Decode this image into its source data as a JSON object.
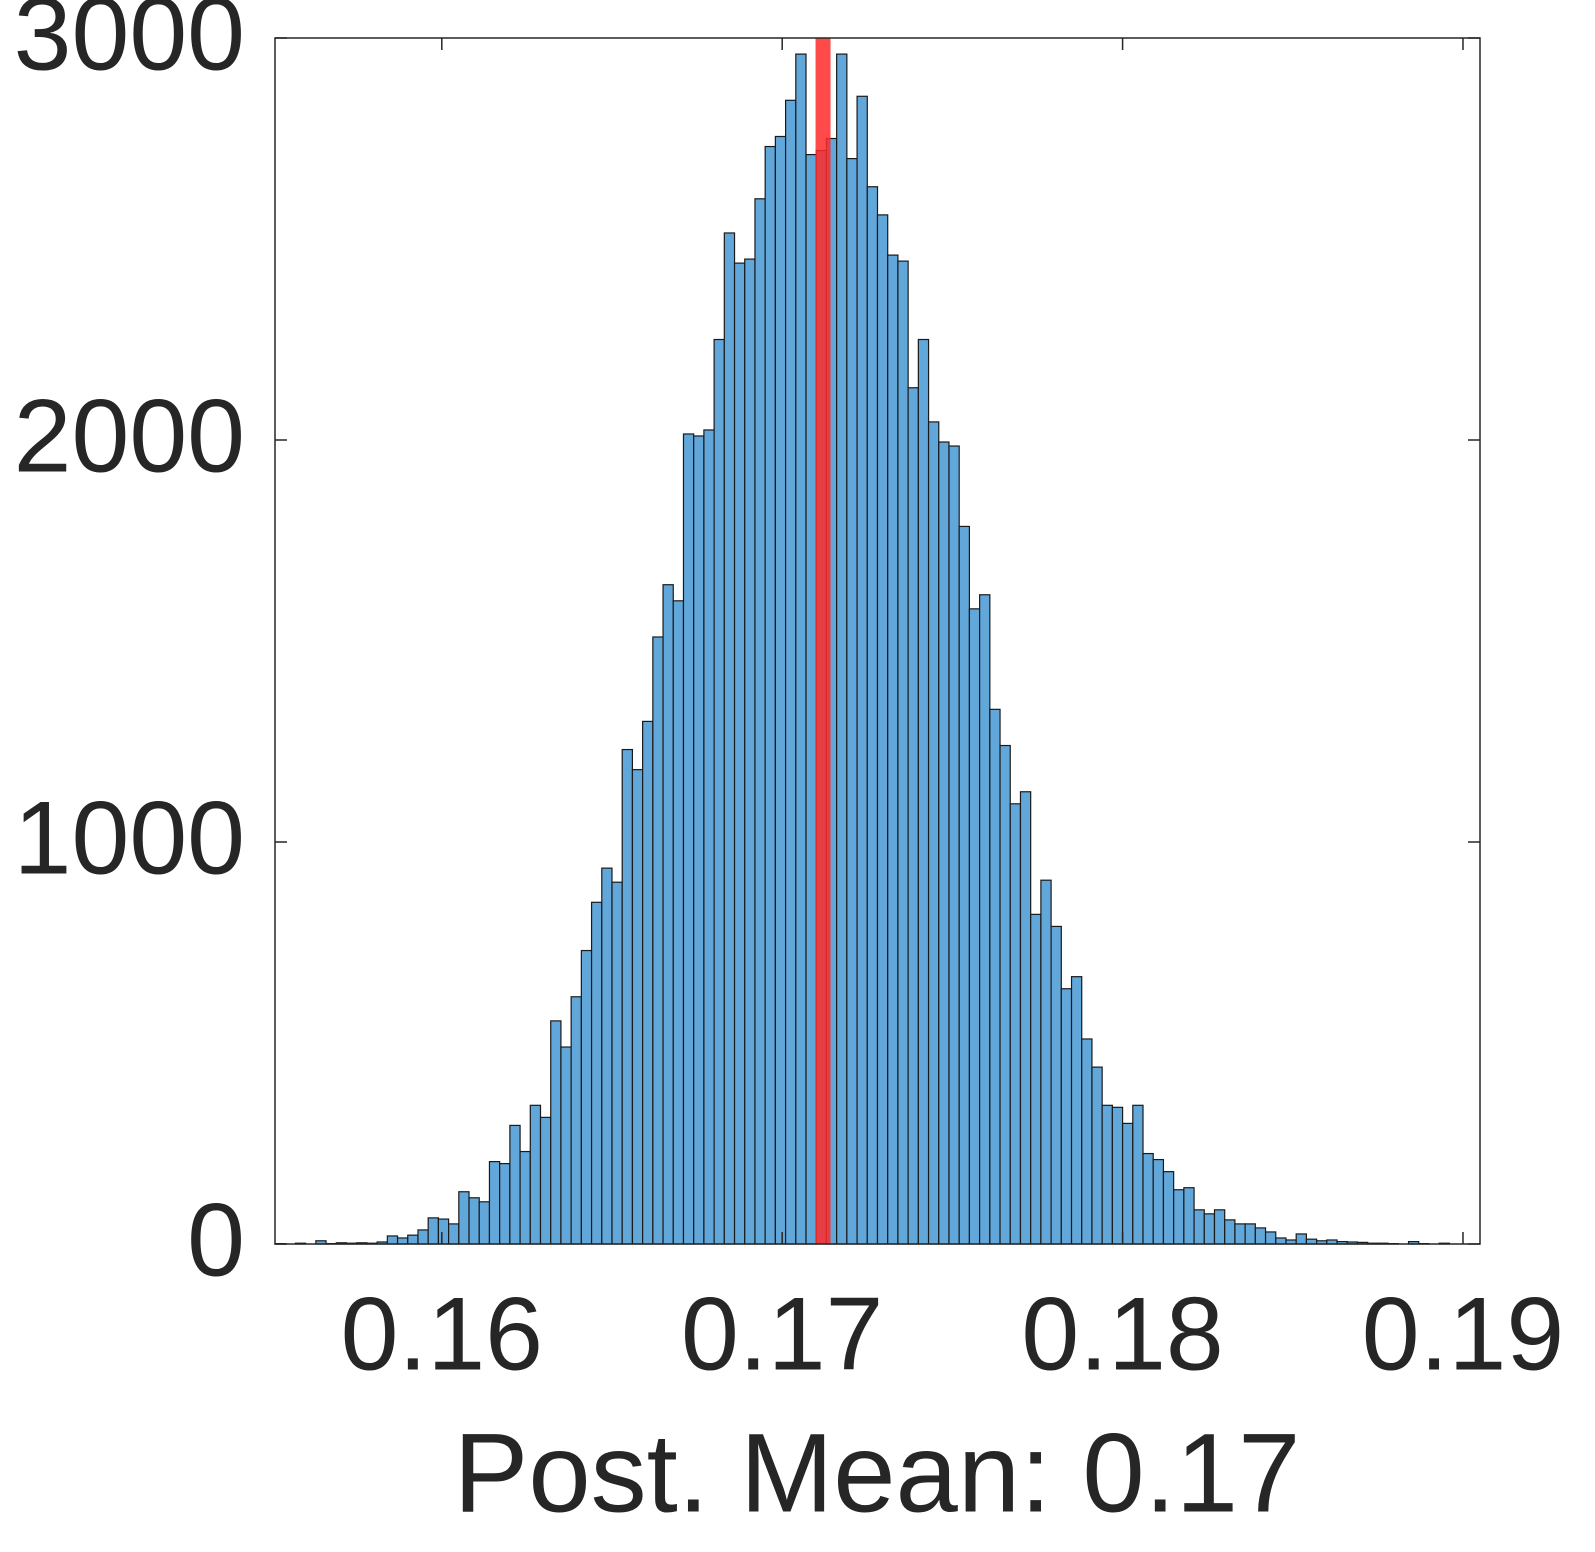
{
  "chart_data": {
    "type": "histogram",
    "xlabel": "Post. Mean: 0.17",
    "bins": [
      0.1551,
      0.1554,
      0.1557,
      0.156,
      0.1563,
      0.1566,
      0.1569,
      0.1572,
      0.1575,
      0.1578,
      0.1581,
      0.1584,
      0.1587,
      0.159,
      0.1593,
      0.1596,
      0.1599,
      0.1602,
      0.1605,
      0.1608,
      0.1611,
      0.1614,
      0.1617,
      0.162,
      0.1623,
      0.1626,
      0.1629,
      0.1632,
      0.1635,
      0.1638,
      0.1641,
      0.1644,
      0.1647,
      0.165,
      0.1653,
      0.1656,
      0.1659,
      0.1662,
      0.1665,
      0.1668,
      0.1671,
      0.1674,
      0.1677,
      0.168,
      0.1683,
      0.1686,
      0.1689,
      0.1692,
      0.1695,
      0.1698,
      0.1701,
      0.1704,
      0.1707,
      0.171,
      0.1713,
      0.1716,
      0.1719,
      0.1722,
      0.1725,
      0.1728,
      0.1731,
      0.1734,
      0.1737,
      0.174,
      0.1743,
      0.1746,
      0.1749,
      0.1752,
      0.1755,
      0.1758,
      0.1761,
      0.1764,
      0.1767,
      0.177,
      0.1773,
      0.1776,
      0.1779,
      0.1782,
      0.1785,
      0.1788,
      0.1791,
      0.1794,
      0.1797,
      0.18,
      0.1803,
      0.1806,
      0.1809,
      0.1812,
      0.1815,
      0.1818,
      0.1821,
      0.1824,
      0.1827,
      0.183,
      0.1833,
      0.1836,
      0.1839,
      0.1842,
      0.1845,
      0.1848,
      0.1851,
      0.1854,
      0.1857,
      0.186,
      0.1863,
      0.1866,
      0.1869,
      0.1872,
      0.1875,
      0.1878,
      0.1881,
      0.1884,
      0.1887,
      0.189,
      0.1893,
      0.1896
    ],
    "values": [
      1,
      0,
      2,
      0,
      8,
      1,
      3,
      2,
      3,
      2,
      5,
      20,
      15,
      22,
      35,
      65,
      62,
      50,
      130,
      115,
      105,
      205,
      200,
      295,
      230,
      345,
      315,
      555,
      490,
      615,
      730,
      850,
      935,
      900,
      1230,
      1180,
      1300,
      1510,
      1640,
      1600,
      2015,
      2010,
      2025,
      2250,
      2515,
      2440,
      2450,
      2600,
      2730,
      2755,
      2845,
      2960,
      2710,
      2720,
      2750,
      2960,
      2700,
      2855,
      2630,
      2560,
      2460,
      2445,
      2130,
      2250,
      2045,
      1995,
      1985,
      1785,
      1580,
      1615,
      1330,
      1240,
      1095,
      1125,
      820,
      905,
      790,
      635,
      665,
      510,
      440,
      345,
      340,
      300,
      345,
      225,
      210,
      180,
      135,
      140,
      85,
      75,
      85,
      60,
      50,
      50,
      40,
      30,
      15,
      10,
      25,
      12,
      8,
      10,
      6,
      5,
      4,
      2,
      2,
      1,
      0,
      6,
      1,
      0,
      2
    ],
    "color": "#62a7d9",
    "edgecolor": "#1a1a1a",
    "reference_line": {
      "value": 0.1712,
      "color": "#ff2a2a"
    },
    "xlim": [
      0.1551,
      0.1905
    ],
    "ylim": [
      0,
      3000
    ],
    "xticks": [
      0.16,
      0.17,
      0.18,
      0.19
    ],
    "yticks": [
      0,
      1000,
      2000,
      3000
    ]
  }
}
